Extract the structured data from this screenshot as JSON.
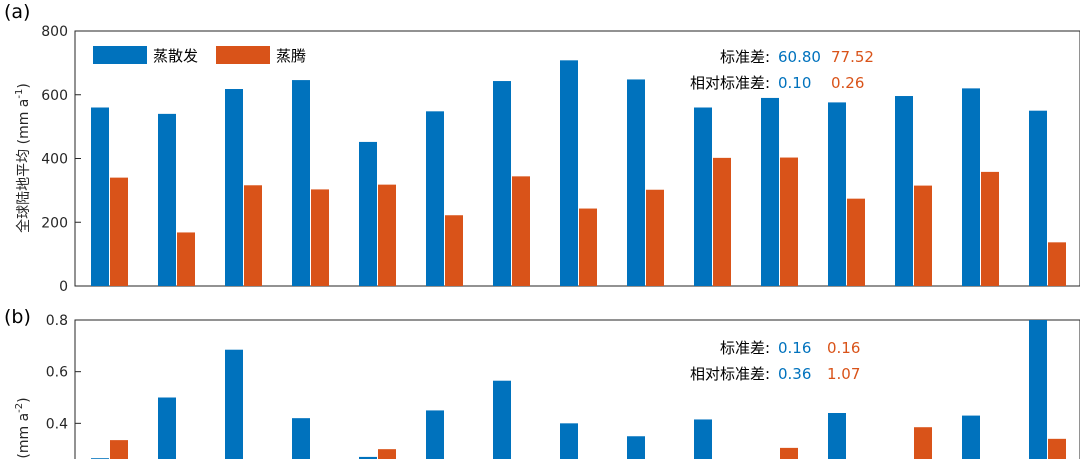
{
  "colors": {
    "evap": "#0072BD",
    "trans": "#D95319"
  },
  "chart_data": [
    {
      "panel_label": "(a)",
      "type": "bar",
      "ylabel": "全球陆地平均 (mm a",
      "ylabel_sup": "-1",
      "ylabel_end": ")",
      "ylim": [
        0,
        800
      ],
      "yticks": [
        "0",
        "200",
        "400",
        "600",
        "800"
      ],
      "ytick_values": [
        0,
        200,
        400,
        600,
        800
      ],
      "legend": {
        "placement": "top-left",
        "entries": [
          "蒸散发",
          "蒸腾"
        ]
      },
      "series": [
        {
          "name": "蒸散发",
          "values": [
            560,
            540,
            618,
            646,
            452,
            548,
            643,
            708,
            648,
            560,
            590,
            576,
            596,
            620,
            550
          ]
        },
        {
          "name": "蒸腾",
          "values": [
            340,
            168,
            316,
            303,
            318,
            222,
            344,
            243,
            302,
            402,
            403,
            274,
            315,
            358,
            137
          ]
        }
      ],
      "stats": [
        {
          "label": "标准差:",
          "evap": "60.80",
          "trans": "77.52"
        },
        {
          "label": "相对标准差:",
          "evap": "0.10",
          "trans": "0.26"
        }
      ]
    },
    {
      "panel_label": "(b)",
      "type": "bar",
      "ylabel": "(mm a",
      "ylabel_sup": "-2",
      "ylabel_end": ")",
      "ylim": [
        0.2,
        0.8
      ],
      "yticks": [
        "0.4",
        "0.6",
        "0.8"
      ],
      "ytick_values": [
        0.4,
        0.6,
        0.8
      ],
      "series": [
        {
          "name": "蒸散发",
          "values": [
            0.265,
            0.5,
            0.685,
            0.42,
            0.27,
            0.45,
            0.565,
            0.4,
            0.35,
            0.415,
            0.2,
            0.44,
            0.26,
            0.43,
            0.8
          ]
        },
        {
          "name": "蒸腾",
          "values": [
            0.335,
            0.2,
            0.2,
            0.2,
            0.3,
            0.2,
            0.2,
            0.2,
            0.2,
            0.2,
            0.305,
            0.2,
            0.385,
            0.2,
            0.34
          ]
        }
      ],
      "stats": [
        {
          "label": "标准差:",
          "evap": "0.16",
          "trans": "0.16"
        },
        {
          "label": "相对标准差:",
          "evap": "0.36",
          "trans": "1.07"
        }
      ]
    }
  ]
}
